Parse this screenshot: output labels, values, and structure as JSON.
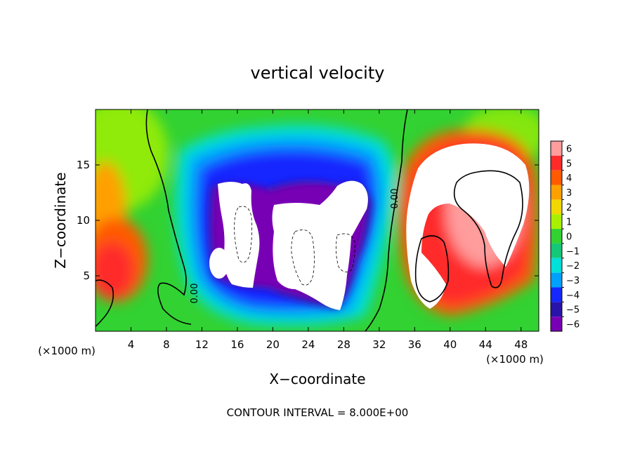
{
  "chart_data": {
    "type": "heatmap",
    "title": "vertical velocity",
    "xlabel": "X−coordinate",
    "ylabel": "Z−coordinate",
    "x_unit_left": "(×1000 m)",
    "x_unit_right": "(×1000 m)",
    "x_ticks": [
      "4",
      "8",
      "12",
      "16",
      "20",
      "24",
      "28",
      "32",
      "36",
      "40",
      "44",
      "48"
    ],
    "x_tick_values": [
      4,
      8,
      12,
      16,
      20,
      24,
      28,
      32,
      36,
      40,
      44,
      48
    ],
    "y_ticks": [
      "5",
      "10",
      "15"
    ],
    "y_tick_values": [
      5,
      10,
      15
    ],
    "xlim": [
      0,
      50
    ],
    "ylim": [
      0,
      20
    ],
    "colorbar": {
      "labels": [
        "6",
        "5",
        "4",
        "3",
        "2",
        "1",
        "0",
        "−1",
        "−2",
        "−3",
        "−4",
        "−5",
        "−6"
      ],
      "values": [
        6,
        5,
        4,
        3,
        2,
        1,
        0,
        -1,
        -2,
        -3,
        -4,
        -5,
        -6
      ],
      "colors": [
        "#ff9c9c",
        "#ff2a2a",
        "#ff5a00",
        "#ffa000",
        "#f0d800",
        "#a8f000",
        "#32d232",
        "#14c878",
        "#00e0d8",
        "#00a0ff",
        "#1428ff",
        "#2814a8",
        "#7800b4"
      ]
    },
    "contour_labels": [
      "0.00",
      "0.00"
    ],
    "footer": "CONTOUR INTERVAL = 8.000E+00",
    "features": [
      {
        "kind": "updraft-core",
        "x_range": [
          36,
          48
        ],
        "z_range": [
          2,
          15
        ],
        "w": ">6"
      },
      {
        "kind": "downdraft-core",
        "x_range": [
          13,
          31
        ],
        "z_range": [
          2,
          13
        ],
        "w": "<-6"
      },
      {
        "kind": "weak-updraft",
        "x_range": [
          0,
          6
        ],
        "z_range": [
          2,
          10
        ],
        "w": "3 to 6"
      }
    ],
    "grid": false,
    "legend": "right"
  }
}
